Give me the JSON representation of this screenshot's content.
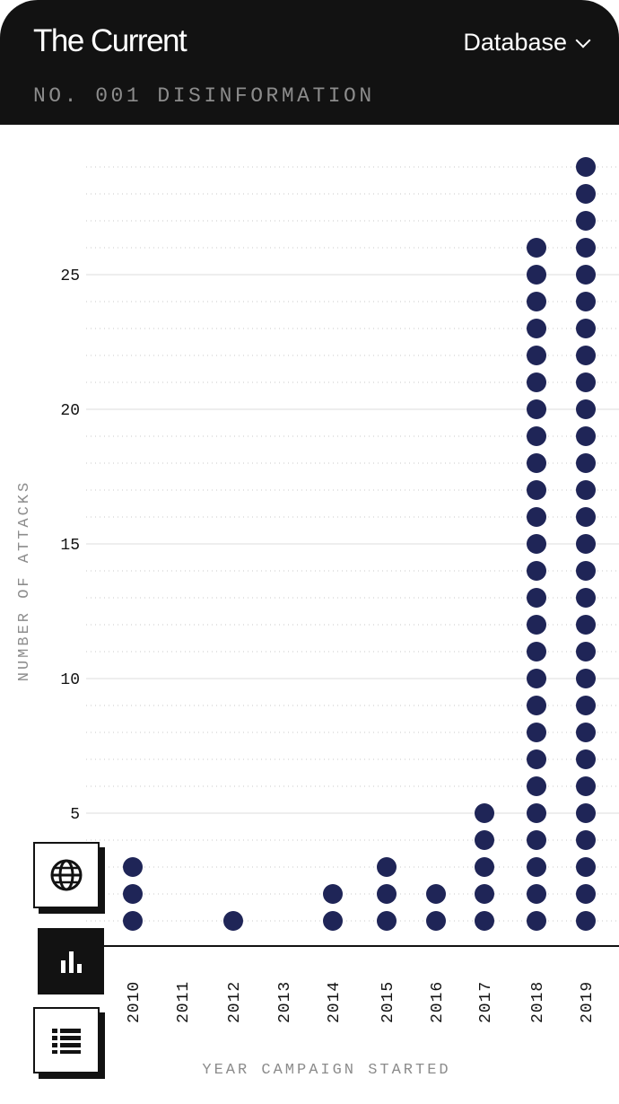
{
  "header": {
    "brand": "The Current",
    "menu_label": "Database",
    "subtitle": "NO. 001 DISINFORMATION"
  },
  "colors": {
    "header_bg": "#121212",
    "dot": "#1f2557",
    "grid": "#dddddd",
    "axis_text": "#8c8c8c"
  },
  "icons": [
    "globe-icon",
    "bar-chart-icon",
    "list-icon"
  ],
  "chart_data": {
    "type": "scatter",
    "style": "dot-stack",
    "categories": [
      "2010",
      "2011",
      "2012",
      "2013",
      "2014",
      "2015",
      "2016",
      "2017",
      "2018",
      "2019"
    ],
    "values": [
      3,
      0,
      1,
      0,
      2,
      3,
      2,
      5,
      26,
      29
    ],
    "xlabel": "YEAR CAMPAIGN STARTED",
    "ylabel": "NUMBER OF ATTACKS",
    "yticks": [
      5,
      10,
      15,
      20,
      25
    ],
    "ylim": [
      0,
      29
    ],
    "grid": true
  }
}
